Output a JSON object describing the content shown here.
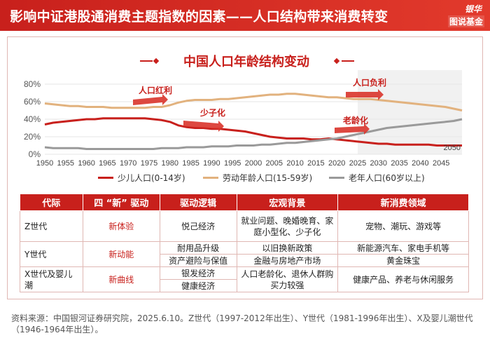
{
  "header": {
    "title": "影响中证港股通消费主题指数的因素——人口结构带来消费转变"
  },
  "logo": {
    "top": "银华",
    "bottom": "图说基金"
  },
  "chart_data": {
    "type": "line",
    "title": "中国人口年龄结构变动",
    "x": [
      1950,
      1952,
      1954,
      1956,
      1958,
      1960,
      1962,
      1964,
      1966,
      1968,
      1970,
      1972,
      1974,
      1976,
      1978,
      1980,
      1982,
      1984,
      1986,
      1988,
      1990,
      1992,
      1994,
      1996,
      1998,
      2000,
      2002,
      2004,
      2006,
      2008,
      2010,
      2012,
      2014,
      2016,
      2018,
      2020,
      2022,
      2024,
      2026,
      2028,
      2030,
      2032,
      2034,
      2036,
      2038,
      2040,
      2042,
      2044,
      2046,
      2048,
      2050
    ],
    "series": [
      {
        "name": "少儿人口(0-14岁)",
        "color": "#c8201c",
        "values": [
          34,
          36,
          37,
          38,
          39,
          40,
          40,
          41,
          41,
          41,
          41,
          41,
          41,
          40,
          39,
          37,
          33,
          31,
          30,
          30,
          29,
          29,
          28,
          27,
          26,
          24,
          22,
          20,
          19,
          18,
          18,
          18,
          17,
          17,
          18,
          17,
          16,
          15,
          14,
          13,
          12,
          12,
          11,
          11,
          11,
          11,
          11,
          10,
          10,
          10,
          10
        ]
      },
      {
        "name": "劳动年龄人口(15-59岁)",
        "color": "#e2b27e",
        "values": [
          58,
          57,
          56,
          55,
          55,
          54,
          54,
          54,
          53,
          53,
          53,
          53,
          53,
          54,
          54,
          56,
          59,
          61,
          62,
          62,
          62,
          63,
          63,
          64,
          65,
          66,
          67,
          68,
          68,
          69,
          69,
          68,
          67,
          66,
          65,
          65,
          64,
          63,
          63,
          63,
          62,
          61,
          60,
          59,
          58,
          57,
          56,
          55,
          54,
          52,
          50
        ]
      },
      {
        "name": "老年人口(60岁以上)",
        "color": "#9a9a9a",
        "values": [
          8,
          7,
          7,
          7,
          7,
          6,
          6,
          6,
          6,
          6,
          6,
          6,
          6,
          6,
          7,
          7,
          7,
          8,
          8,
          8,
          9,
          9,
          9,
          10,
          10,
          10,
          11,
          11,
          12,
          13,
          13,
          14,
          15,
          16,
          17,
          18,
          20,
          22,
          24,
          26,
          28,
          30,
          31,
          32,
          33,
          34,
          35,
          36,
          37,
          38,
          40
        ]
      }
    ],
    "xticks": [
      "1950",
      "1955",
      "1960",
      "1965",
      "1970",
      "1975",
      "1980",
      "1985",
      "1990",
      "1995",
      "2000",
      "2005",
      "2010",
      "2015",
      "2020",
      "2025",
      "2030",
      "2035",
      "2040",
      "2045"
    ],
    "yticks": [
      "0%",
      "20%",
      "40%",
      "60%",
      "80%"
    ],
    "ylim": [
      0,
      80
    ],
    "xlim": [
      1950,
      2050
    ],
    "forecast_start": 2025,
    "end_label": "2050",
    "annotations": {
      "labor_bonus": "人口红利",
      "few_children": "少子化",
      "labor_burden": "人口负利",
      "aging": "老龄化"
    },
    "legend_position": "bottom"
  },
  "table": {
    "headers": [
      "代际",
      "四 “新” 驱动",
      "驱动逻辑",
      "宏观背景",
      "新消费领域"
    ],
    "rows": [
      {
        "era": "Z世代",
        "driver": "新体验",
        "logic": [
          "悦己经济"
        ],
        "background": [
          "就业问题、晚婚晚育、家庭小型化、少子化"
        ],
        "consumption": [
          "宠物、潮玩、游戏等"
        ]
      },
      {
        "era": "Y世代",
        "driver": "新动能",
        "logic": [
          "耐用品升级",
          "资产避险与保值"
        ],
        "background": [
          "以旧换新政策",
          "金融与房地产市场"
        ],
        "consumption": [
          "新能源汽车、家电手机等",
          "黄金珠宝"
        ]
      },
      {
        "era": "X世代及婴儿潮",
        "driver": "新曲线",
        "logic": [
          "银发经济",
          "健康经济"
        ],
        "background": [
          "人口老龄化、退休人群购买力较强"
        ],
        "consumption": [
          "健康产品、养老与休闲服务"
        ]
      }
    ]
  },
  "footnote": "资料来源：中国银河证券研究院，2025.6.10。Z世代（1997-2012年出生）、Y世代（1981-1996年出生）、X及婴儿潮世代（1946-1964年出生）。"
}
